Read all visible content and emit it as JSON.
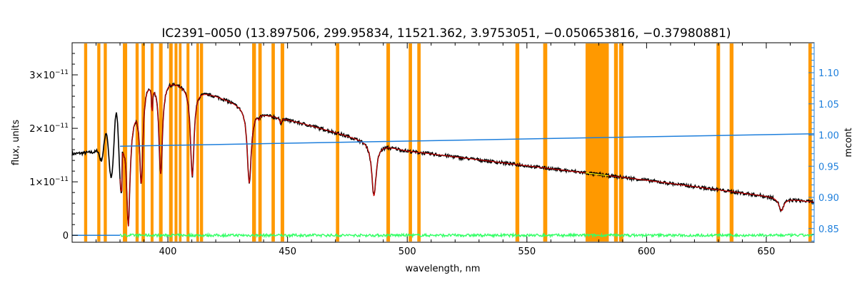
{
  "chart_data": {
    "type": "line",
    "title": "IC2391–0050   (13.897506, 299.95834, 11521.362, 3.9753051, −0.050653816, −0.37980881)",
    "xlabel": "wavelength, nm",
    "ylabel_left": "flux, units",
    "ylabel_right": "mcont",
    "xlim": [
      360,
      670
    ],
    "ylim_left": [
      -1.3e-12,
      3.6e-11
    ],
    "ylim_right": [
      0.828,
      1.148
    ],
    "x_ticks": [
      400,
      450,
      500,
      550,
      600,
      650
    ],
    "y_ticks_left": [
      {
        "value": 0,
        "label": "0"
      },
      {
        "value": 1e-11,
        "mantissa": "1×10",
        "exp": "−11"
      },
      {
        "value": 2e-11,
        "mantissa": "2×10",
        "exp": "−11"
      },
      {
        "value": 3e-11,
        "mantissa": "3×10",
        "exp": "−11"
      }
    ],
    "y_ticks_right": [
      0.85,
      0.9,
      0.95,
      1.0,
      1.05,
      1.1
    ],
    "masked_regions": [
      [
        365.0,
        366.3
      ],
      [
        370.5,
        371.8
      ],
      [
        373.2,
        374.5
      ],
      [
        381.2,
        383.0
      ],
      [
        386.5,
        387.8
      ],
      [
        389.0,
        390.4
      ],
      [
        392.8,
        394.0
      ],
      [
        396.3,
        397.8
      ],
      [
        400.5,
        402.0
      ],
      [
        402.8,
        404.0
      ],
      [
        404.6,
        405.7
      ],
      [
        407.8,
        409.0
      ],
      [
        411.9,
        413.0
      ],
      [
        413.4,
        414.7
      ],
      [
        435.2,
        436.8
      ],
      [
        437.8,
        439.2
      ],
      [
        443.3,
        444.7
      ],
      [
        447.1,
        448.6
      ],
      [
        470.2,
        471.6
      ],
      [
        491.3,
        492.8
      ],
      [
        500.6,
        502.0
      ],
      [
        504.2,
        505.6
      ],
      [
        545.2,
        546.8
      ],
      [
        556.8,
        558.5
      ],
      [
        574.5,
        584.2
      ],
      [
        586.4,
        588.0
      ],
      [
        588.5,
        590.3
      ],
      [
        629.2,
        630.7
      ],
      [
        634.7,
        636.3
      ],
      [
        667.6,
        669.0
      ]
    ],
    "continuum_anchors": [
      [
        360,
        1.52e-11
      ],
      [
        380,
        1.6e-11
      ],
      [
        390,
        2.95e-11
      ],
      [
        400,
        2.93e-11
      ],
      [
        420,
        2.62e-11
      ],
      [
        440,
        2.28e-11
      ],
      [
        460,
        2.05e-11
      ],
      [
        480,
        1.8e-11
      ],
      [
        500,
        1.58e-11
      ],
      [
        550,
        1.3e-11
      ],
      [
        600,
        1.03e-11
      ],
      [
        640,
        7.9e-12
      ],
      [
        670,
        6.2e-12
      ]
    ],
    "absorption_lines": [
      {
        "center": 656.3,
        "depth": 2.4e-12,
        "width": 1.2
      },
      {
        "center": 486.1,
        "depth": 1e-11,
        "width": 1.1
      },
      {
        "center": 434.0,
        "depth": 1.4e-11,
        "width": 1.0
      },
      {
        "center": 410.2,
        "depth": 1.66e-11,
        "width": 0.9
      },
      {
        "center": 397.0,
        "depth": 1.75e-11,
        "width": 0.9
      },
      {
        "center": 388.9,
        "depth": 1.78e-11,
        "width": 0.9
      },
      {
        "center": 383.5,
        "depth": 1.85e-11,
        "width": 0.8
      },
      {
        "center": 393.4,
        "depth": 5e-12,
        "width": 0.25
      },
      {
        "center": 447.1,
        "depth": 1e-12,
        "width": 0.4
      },
      {
        "center": 438.0,
        "depth": 8e-13,
        "width": 0.4
      }
    ],
    "mcont_line": {
      "x": [
        380,
        670
      ],
      "y": [
        0.982,
        1.002
      ]
    },
    "residual_level": 0,
    "series": [
      {
        "name": "",
        "color": "#000000"
      },
      {
        "name": "",
        "color": "#cc0000"
      },
      {
        "name": "",
        "color": "#ffff00"
      },
      {
        "name": "",
        "color": "#1e7fdc"
      },
      {
        "name": "",
        "color": "#33ff66"
      }
    ],
    "mask_color": "#ff9900",
    "right_axis_color": "#1e7fdc",
    "grid": false
  }
}
